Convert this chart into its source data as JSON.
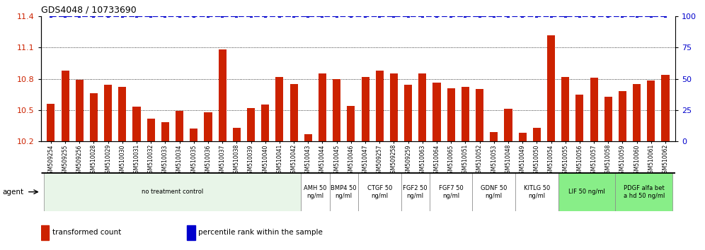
{
  "title": "GDS4048 / 10733690",
  "samples": [
    "GSM509254",
    "GSM509255",
    "GSM509256",
    "GSM510028",
    "GSM510029",
    "GSM510030",
    "GSM510031",
    "GSM510032",
    "GSM510033",
    "GSM510034",
    "GSM510035",
    "GSM510036",
    "GSM510037",
    "GSM510038",
    "GSM510039",
    "GSM510040",
    "GSM510041",
    "GSM510042",
    "GSM510043",
    "GSM510044",
    "GSM510045",
    "GSM510046",
    "GSM510047",
    "GSM509257",
    "GSM509258",
    "GSM509259",
    "GSM510063",
    "GSM510064",
    "GSM510065",
    "GSM510051",
    "GSM510052",
    "GSM510053",
    "GSM510048",
    "GSM510049",
    "GSM510050",
    "GSM510054",
    "GSM510055",
    "GSM510056",
    "GSM510057",
    "GSM510058",
    "GSM510059",
    "GSM510060",
    "GSM510061",
    "GSM510062"
  ],
  "bar_values": [
    10.56,
    10.88,
    10.79,
    10.66,
    10.74,
    10.72,
    10.53,
    10.42,
    10.38,
    10.49,
    10.32,
    10.48,
    11.08,
    10.33,
    10.52,
    10.55,
    10.82,
    10.75,
    10.27,
    10.85,
    10.8,
    10.54,
    10.82,
    10.88,
    10.85,
    10.74,
    10.85,
    10.76,
    10.71,
    10.72,
    10.7,
    10.29,
    10.51,
    10.28,
    10.33,
    11.22,
    10.82,
    10.65,
    10.81,
    10.63,
    10.68,
    10.75,
    10.78,
    10.84
  ],
  "percentile_values": [
    100,
    100,
    100,
    100,
    100,
    100,
    100,
    100,
    100,
    100,
    100,
    100,
    100,
    100,
    100,
    100,
    100,
    100,
    100,
    100,
    100,
    100,
    100,
    100,
    100,
    100,
    100,
    100,
    100,
    100,
    100,
    100,
    100,
    100,
    100,
    100,
    100,
    100,
    100,
    100,
    100,
    100,
    100,
    100
  ],
  "bar_color": "#cc2200",
  "percentile_color": "#0000cc",
  "ylim_left": [
    10.2,
    11.4
  ],
  "ylim_right": [
    0,
    100
  ],
  "yticks_left": [
    10.2,
    10.5,
    10.8,
    11.1,
    11.4
  ],
  "yticks_right": [
    0,
    25,
    50,
    75,
    100
  ],
  "grid_values": [
    10.5,
    10.8,
    11.1
  ],
  "ymin": 10.2,
  "agent_groups": [
    {
      "label": "no treatment control",
      "start": 0,
      "end": 18,
      "color": "#e8f5e8"
    },
    {
      "label": "AMH 50\nng/ml",
      "start": 18,
      "end": 20,
      "color": "#ffffff"
    },
    {
      "label": "BMP4 50\nng/ml",
      "start": 20,
      "end": 22,
      "color": "#ffffff"
    },
    {
      "label": "CTGF 50\nng/ml",
      "start": 22,
      "end": 25,
      "color": "#ffffff"
    },
    {
      "label": "FGF2 50\nng/ml",
      "start": 25,
      "end": 27,
      "color": "#ffffff"
    },
    {
      "label": "FGF7 50\nng/ml",
      "start": 27,
      "end": 30,
      "color": "#ffffff"
    },
    {
      "label": "GDNF 50\nng/ml",
      "start": 30,
      "end": 33,
      "color": "#ffffff"
    },
    {
      "label": "KITLG 50\nng/ml",
      "start": 33,
      "end": 36,
      "color": "#ffffff"
    },
    {
      "label": "LIF 50 ng/ml",
      "start": 36,
      "end": 40,
      "color": "#88ee88"
    },
    {
      "label": "PDGF alfa bet\na hd 50 ng/ml",
      "start": 40,
      "end": 44,
      "color": "#88ee88"
    }
  ],
  "legend_items": [
    {
      "label": "transformed count",
      "color": "#cc2200"
    },
    {
      "label": "percentile rank within the sample",
      "color": "#0000cc"
    }
  ],
  "bar_width": 0.55,
  "tick_fontsize": 5.5,
  "title_fontsize": 9,
  "agent_fontsize": 6.0,
  "legend_fontsize": 7.5
}
